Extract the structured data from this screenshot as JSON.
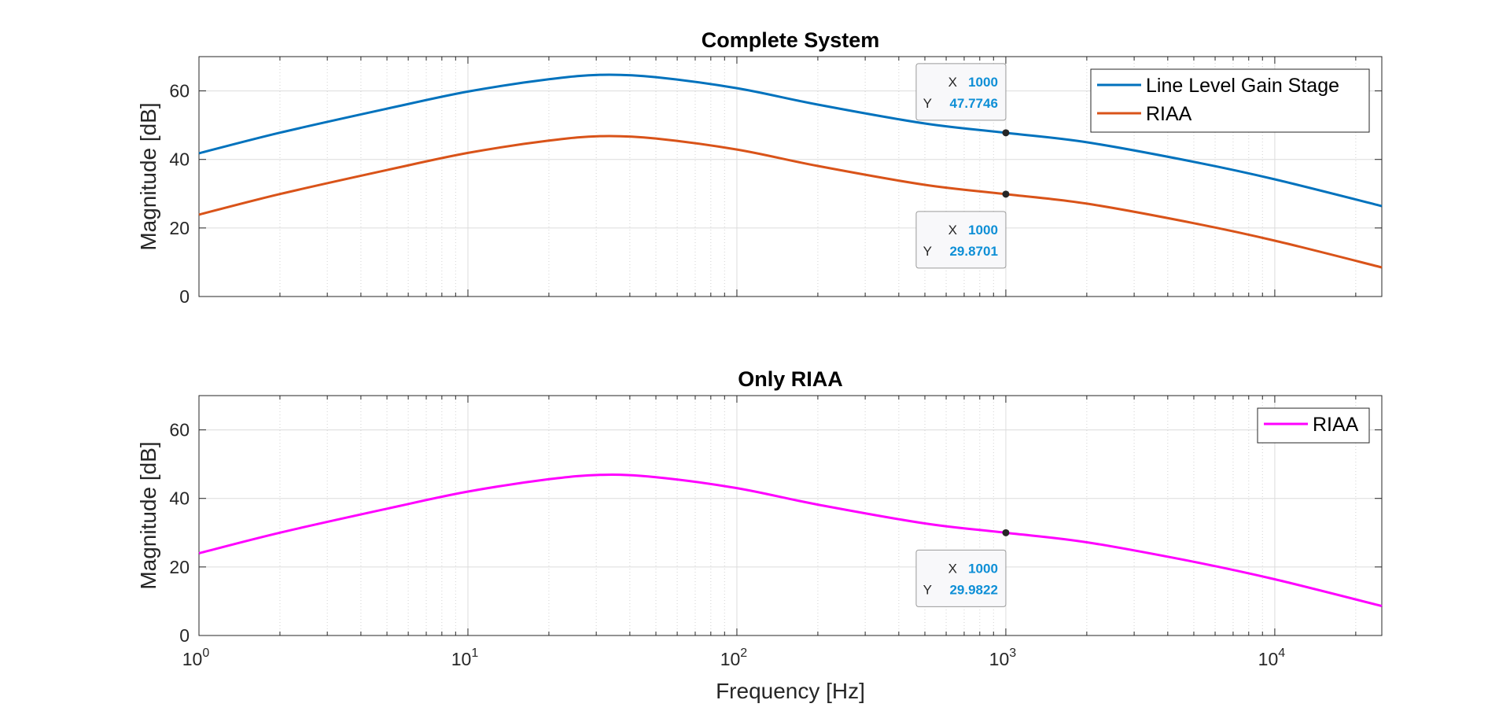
{
  "chart_data": [
    {
      "type": "line",
      "title": "Complete System",
      "ylabel": "Magnitude [dB]",
      "xlabel": "",
      "x_scale": "log",
      "xlim": [
        1,
        25000
      ],
      "ylim": [
        0,
        70
      ],
      "yticks": [
        0,
        20,
        40,
        60
      ],
      "xticks": [
        1,
        10,
        100,
        1000,
        10000
      ],
      "grid": true,
      "legend_position": "top-right",
      "series": [
        {
          "name": "Line Level Gain Stage",
          "color": "#0072bd",
          "x": [
            1,
            2,
            5,
            10,
            20,
            31.6,
            50,
            100,
            200,
            500,
            1000,
            2000,
            5000,
            10000,
            25000
          ],
          "y": [
            41.8,
            47.8,
            54.8,
            59.8,
            63.4,
            64.7,
            64.0,
            60.8,
            56.0,
            50.5,
            47.77,
            45.0,
            39.3,
            34.2,
            26.4
          ]
        },
        {
          "name": "RIAA",
          "color": "#d95319",
          "x": [
            1,
            2,
            5,
            10,
            20,
            31.6,
            50,
            100,
            200,
            500,
            1000,
            2000,
            5000,
            10000,
            25000
          ],
          "y": [
            23.9,
            29.9,
            36.9,
            41.9,
            45.5,
            46.8,
            46.1,
            42.9,
            38.1,
            32.6,
            29.87,
            27.1,
            21.4,
            16.3,
            8.5
          ]
        }
      ],
      "datatips": [
        {
          "x_label": "X",
          "x_value": "1000",
          "y_label": "Y",
          "y_value": "47.7746",
          "x": 1000,
          "y": 47.7746
        },
        {
          "x_label": "X",
          "x_value": "1000",
          "y_label": "Y",
          "y_value": "29.8701",
          "x": 1000,
          "y": 29.8701
        }
      ]
    },
    {
      "type": "line",
      "title": "Only RIAA",
      "ylabel": "Magnitude [dB]",
      "xlabel": "Frequency [Hz]",
      "x_scale": "log",
      "xlim": [
        1,
        25000
      ],
      "ylim": [
        0,
        70
      ],
      "yticks": [
        0,
        20,
        40,
        60
      ],
      "xticks": [
        1,
        10,
        100,
        1000,
        10000
      ],
      "grid": true,
      "legend_position": "top-right",
      "series": [
        {
          "name": "RIAA",
          "color": "#ff00ff",
          "x": [
            1,
            2,
            5,
            10,
            20,
            31.6,
            50,
            100,
            200,
            500,
            1000,
            2000,
            5000,
            10000,
            25000
          ],
          "y": [
            24.0,
            30.0,
            37.0,
            42.0,
            45.6,
            46.9,
            46.2,
            43.0,
            38.2,
            32.7,
            29.98,
            27.2,
            21.5,
            16.4,
            8.6
          ]
        }
      ],
      "datatips": [
        {
          "x_label": "X",
          "x_value": "1000",
          "y_label": "Y",
          "y_value": "29.9822",
          "x": 1000,
          "y": 29.9822
        }
      ]
    }
  ]
}
